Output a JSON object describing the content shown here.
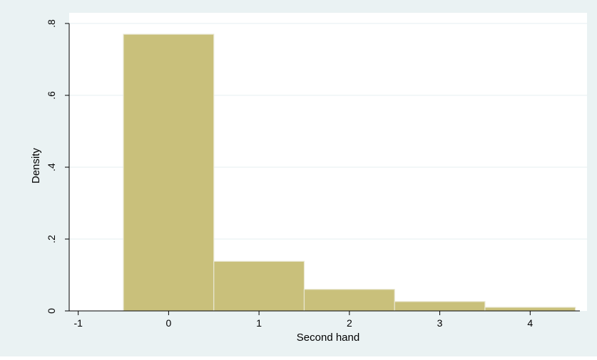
{
  "chart_data": {
    "type": "bar",
    "title": "",
    "xlabel": "Second hand",
    "ylabel": "Density",
    "xlim": [
      -1.1,
      4.55
    ],
    "ylim": [
      0,
      0.8
    ],
    "x_ticks": [
      {
        "value": -1,
        "label": "-1"
      },
      {
        "value": 0,
        "label": "0"
      },
      {
        "value": 1,
        "label": "1"
      },
      {
        "value": 2,
        "label": "2"
      },
      {
        "value": 3,
        "label": "3"
      },
      {
        "value": 4,
        "label": "4"
      }
    ],
    "y_ticks": [
      {
        "value": 0,
        "label": "0"
      },
      {
        "value": 0.2,
        "label": ".2"
      },
      {
        "value": 0.4,
        "label": ".4"
      },
      {
        "value": 0.6,
        "label": ".6"
      },
      {
        "value": 0.8,
        "label": ".8"
      }
    ],
    "bins": [
      {
        "x_start": -0.5,
        "x_end": 0.5,
        "value": 0.77
      },
      {
        "x_start": 0.5,
        "x_end": 1.5,
        "value": 0.138
      },
      {
        "x_start": 1.5,
        "x_end": 2.5,
        "value": 0.06
      },
      {
        "x_start": 2.5,
        "x_end": 3.5,
        "value": 0.026
      },
      {
        "x_start": 3.5,
        "x_end": 4.5,
        "value": 0.01
      }
    ],
    "grid": true,
    "legend": "none",
    "colors": {
      "outer_background": "#eaf2f3",
      "plot_background": "#ffffff",
      "bar_fill": "#c9c07b",
      "bar_stroke": "#e8e6d0",
      "grid": "#eaf2f3",
      "axis": "#000000",
      "text": "#000000"
    }
  }
}
